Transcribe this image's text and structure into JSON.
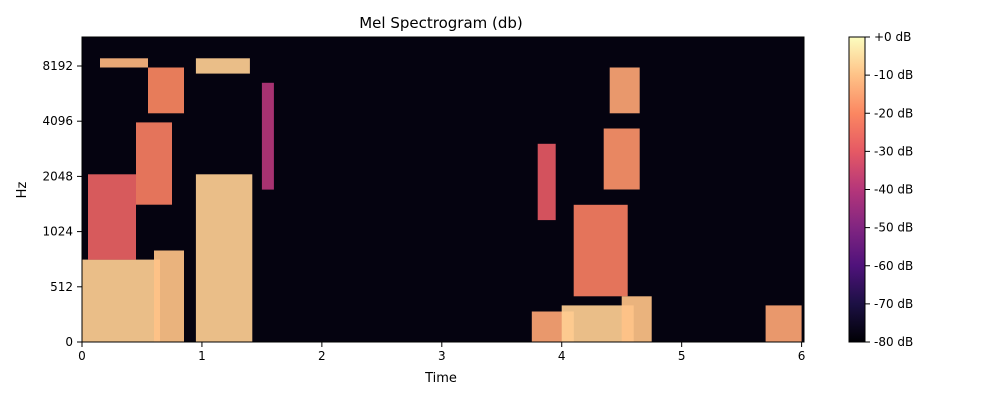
{
  "chart_data": {
    "type": "heatmap",
    "title": "Mel Spectrogram (db)",
    "xlabel": "Time",
    "ylabel": "Hz",
    "xlim": [
      0,
      6.02
    ],
    "y_ticks": [
      "0",
      "512",
      "1024",
      "2048",
      "4096",
      "8192"
    ],
    "x_ticks": [
      "0",
      "1",
      "2",
      "3",
      "4",
      "5",
      "6"
    ],
    "colorbar": {
      "range": [
        -80,
        0
      ],
      "tick_values": [
        0,
        -10,
        -20,
        -30,
        -40,
        -50,
        -60,
        -70,
        -80
      ],
      "tick_labels": [
        "+0 dB",
        "-10 dB",
        "-20 dB",
        "-30 dB",
        "-40 dB",
        "-50 dB",
        "-60 dB",
        "-70 dB",
        "-80 dB"
      ],
      "colormap": "magma"
    },
    "energy_regions": [
      {
        "t": [
          0.0,
          0.65
        ],
        "mel": [
          0.0,
          0.27
        ],
        "db": -8
      },
      {
        "t": [
          0.05,
          0.45
        ],
        "mel": [
          0.27,
          0.55
        ],
        "db": -28
      },
      {
        "t": [
          0.15,
          0.55
        ],
        "mel": [
          0.9,
          0.93
        ],
        "db": -12
      },
      {
        "t": [
          0.45,
          0.75
        ],
        "mel": [
          0.45,
          0.72
        ],
        "db": -22
      },
      {
        "t": [
          0.55,
          0.85
        ],
        "mel": [
          0.75,
          0.9
        ],
        "db": -20
      },
      {
        "t": [
          0.6,
          0.85
        ],
        "mel": [
          0.0,
          0.3
        ],
        "db": -10
      },
      {
        "t": [
          0.95,
          1.42
        ],
        "mel": [
          0.0,
          0.55
        ],
        "db": -8
      },
      {
        "t": [
          0.95,
          1.4
        ],
        "mel": [
          0.88,
          0.93
        ],
        "db": -8
      },
      {
        "t": [
          1.5,
          1.6
        ],
        "mel": [
          0.5,
          0.85
        ],
        "db": -40
      },
      {
        "t": [
          3.75,
          4.1
        ],
        "mel": [
          0.0,
          0.1
        ],
        "db": -15
      },
      {
        "t": [
          3.8,
          3.95
        ],
        "mel": [
          0.4,
          0.65
        ],
        "db": -30
      },
      {
        "t": [
          4.0,
          4.6
        ],
        "mel": [
          0.0,
          0.12
        ],
        "db": -8
      },
      {
        "t": [
          4.1,
          4.55
        ],
        "mel": [
          0.15,
          0.45
        ],
        "db": -22
      },
      {
        "t": [
          4.35,
          4.65
        ],
        "mel": [
          0.5,
          0.7
        ],
        "db": -18
      },
      {
        "t": [
          4.4,
          4.65
        ],
        "mel": [
          0.75,
          0.9
        ],
        "db": -15
      },
      {
        "t": [
          4.5,
          4.75
        ],
        "mel": [
          0.0,
          0.15
        ],
        "db": -10
      },
      {
        "t": [
          5.7,
          6.0
        ],
        "mel": [
          0.0,
          0.12
        ],
        "db": -15
      }
    ]
  }
}
